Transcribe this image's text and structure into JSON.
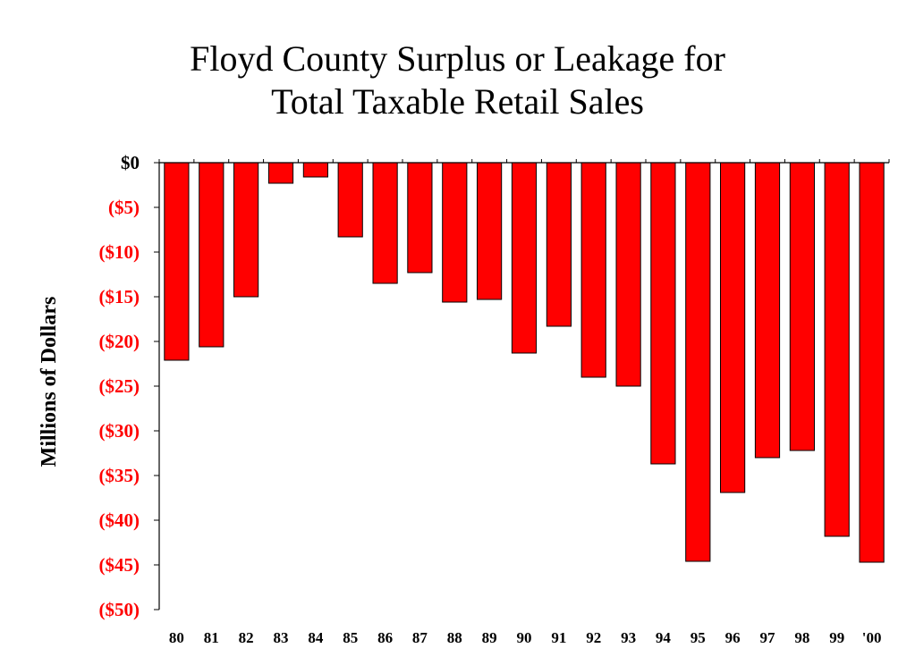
{
  "chart_data": {
    "type": "bar",
    "title_lines": [
      "Floyd County Surplus or Leakage for",
      "Total Taxable Retail Sales"
    ],
    "ylabel": "Millions of Dollars",
    "xlabel": "",
    "categories": [
      "80",
      "81",
      "82",
      "83",
      "84",
      "85",
      "86",
      "87",
      "88",
      "89",
      "90",
      "91",
      "92",
      "93",
      "94",
      "95",
      "96",
      "97",
      "98",
      "99",
      "'00"
    ],
    "values": [
      -22.1,
      -20.6,
      -15.0,
      -2.3,
      -1.6,
      -8.3,
      -13.5,
      -12.3,
      -15.6,
      -15.3,
      -21.3,
      -18.3,
      -24.0,
      -25.0,
      -33.7,
      -44.6,
      -36.9,
      -33.0,
      -32.2,
      -41.8,
      -44.7
    ],
    "ylim": [
      -50,
      0
    ],
    "yticks": [
      0,
      -5,
      -10,
      -15,
      -20,
      -25,
      -30,
      -35,
      -40,
      -45,
      -50
    ],
    "ytick_labels": [
      "$0",
      "($5)",
      "($10)",
      "($15)",
      "($20)",
      "($25)",
      "($30)",
      "($35)",
      "($40)",
      "($45)",
      "($50)"
    ],
    "colors": {
      "bar": "#ff0000",
      "bar_outline": "#000000",
      "negative_tick": "#ff0000",
      "zero_tick": "#000000"
    },
    "grid": false,
    "legend": "none"
  }
}
